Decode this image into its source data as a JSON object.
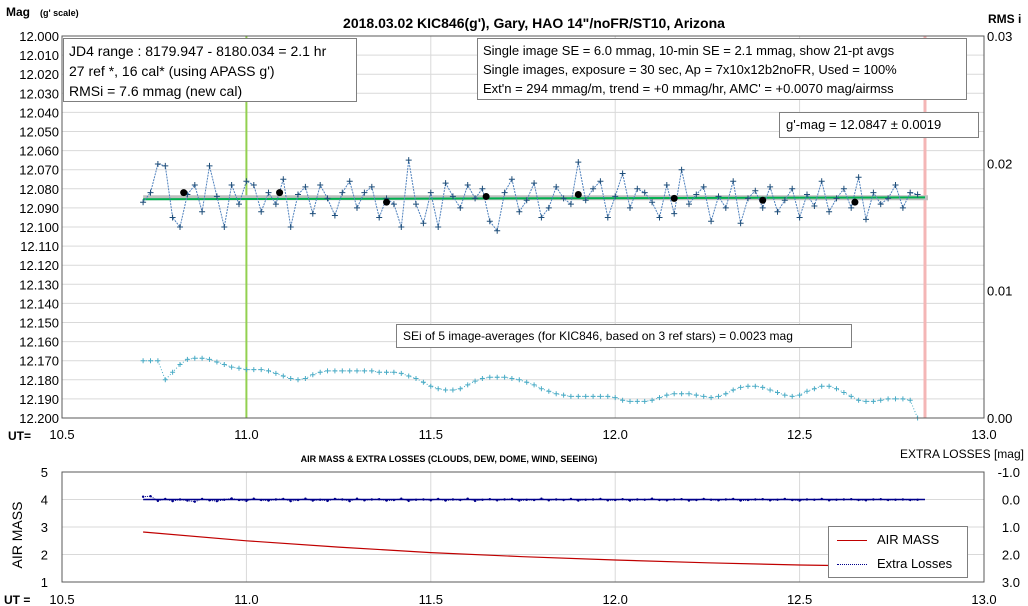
{
  "chart_data": [
    {
      "type": "scatter",
      "title": "2018.03.02  KIC846(g'),  Gary, HAO  14\"/noFR/ST10,  Arizona",
      "ylabel": "Mag",
      "ylabel_unit": "(g' scale)",
      "xlabel": "UT=",
      "y2label": "RMS i",
      "xlim": [
        10.5,
        13.0
      ],
      "ylim": [
        12.0,
        12.2
      ],
      "y_inverted": true,
      "y2lim": [
        0.0,
        0.03
      ],
      "x_ticks": [
        "10.5",
        "11.0",
        "11.5",
        "12.0",
        "12.5",
        "13.0"
      ],
      "y_ticks": [
        "12.000",
        "12.010",
        "12.020",
        "12.030",
        "12.040",
        "12.050",
        "12.060",
        "12.070",
        "12.080",
        "12.090",
        "12.100",
        "12.110",
        "12.120",
        "12.130",
        "12.140",
        "12.150",
        "12.160",
        "12.170",
        "12.180",
        "12.190",
        "12.200"
      ],
      "y2_ticks": [
        "0.00",
        "0.01",
        "0.02",
        "0.03"
      ],
      "grid": true,
      "mean_mag": 12.0847,
      "vertical_markers": [
        {
          "x": 11.0,
          "color": "#92d050"
        },
        {
          "x": 12.84,
          "color": "#f4b6b6"
        }
      ],
      "series": [
        {
          "style": "blue-cross-line",
          "color": "#4f81bd",
          "x": [
            10.72,
            10.74,
            10.76,
            10.78,
            10.8,
            10.82,
            10.84,
            10.86,
            10.88,
            10.9,
            10.92,
            10.94,
            10.96,
            10.98,
            11.0,
            11.02,
            11.04,
            11.06,
            11.08,
            11.1,
            11.12,
            11.14,
            11.16,
            11.18,
            11.2,
            11.22,
            11.24,
            11.26,
            11.28,
            11.3,
            11.32,
            11.34,
            11.36,
            11.38,
            11.4,
            11.42,
            11.44,
            11.46,
            11.48,
            11.5,
            11.52,
            11.54,
            11.56,
            11.58,
            11.6,
            11.62,
            11.64,
            11.66,
            11.68,
            11.7,
            11.72,
            11.74,
            11.76,
            11.78,
            11.8,
            11.82,
            11.84,
            11.86,
            11.88,
            11.9,
            11.92,
            11.94,
            11.96,
            11.98,
            12.0,
            12.02,
            12.04,
            12.06,
            12.08,
            12.1,
            12.12,
            12.14,
            12.16,
            12.18,
            12.2,
            12.22,
            12.24,
            12.26,
            12.28,
            12.3,
            12.32,
            12.34,
            12.36,
            12.38,
            12.4,
            12.42,
            12.44,
            12.46,
            12.48,
            12.5,
            12.52,
            12.54,
            12.56,
            12.58,
            12.6,
            12.62,
            12.64,
            12.66,
            12.68,
            12.7,
            12.72,
            12.74,
            12.76,
            12.78,
            12.8,
            12.82
          ],
          "values": [
            12.087,
            12.082,
            12.067,
            12.068,
            12.095,
            12.1,
            12.083,
            12.078,
            12.092,
            12.068,
            12.084,
            12.1,
            12.078,
            12.088,
            12.076,
            12.078,
            12.092,
            12.082,
            12.088,
            12.075,
            12.1,
            12.083,
            12.079,
            12.093,
            12.078,
            12.085,
            12.094,
            12.082,
            12.076,
            12.09,
            12.082,
            12.079,
            12.095,
            12.085,
            12.088,
            12.1,
            12.065,
            12.088,
            12.098,
            12.082,
            12.1,
            12.077,
            12.084,
            12.09,
            12.078,
            12.085,
            12.08,
            12.097,
            12.102,
            12.082,
            12.075,
            12.092,
            12.086,
            12.077,
            12.095,
            12.09,
            12.079,
            12.085,
            12.088,
            12.066,
            12.086,
            12.08,
            12.076,
            12.095,
            12.084,
            12.072,
            12.09,
            12.08,
            12.082,
            12.087,
            12.095,
            12.078,
            12.093,
            12.07,
            12.088,
            12.083,
            12.079,
            12.097,
            12.084,
            12.09,
            12.076,
            12.098,
            12.085,
            12.081,
            12.09,
            12.079,
            12.092,
            12.086,
            12.08,
            12.095,
            12.083,
            12.089,
            12.076,
            12.092,
            12.085,
            12.08,
            12.09,
            12.074,
            12.096,
            12.082,
            12.088,
            12.085,
            12.078,
            12.09,
            12.082,
            12.083
          ]
        },
        {
          "style": "black-dot",
          "color": "#000000",
          "x": [
            10.83,
            11.09,
            11.38,
            11.65,
            11.9,
            12.16,
            12.4,
            12.65
          ],
          "values": [
            12.082,
            12.082,
            12.087,
            12.084,
            12.083,
            12.085,
            12.086,
            12.087
          ]
        },
        {
          "style": "green-line",
          "color": "#00b050",
          "x": [
            10.72,
            12.84
          ],
          "values": [
            12.0855,
            12.0845
          ]
        },
        {
          "style": "teal-cross-line",
          "axis": "right",
          "color": "#4bacc6",
          "x": [
            10.72,
            10.74,
            10.76,
            10.78,
            10.8,
            10.82,
            10.84,
            10.86,
            10.88,
            10.9,
            10.92,
            10.94,
            10.96,
            10.98,
            11.0,
            11.02,
            11.04,
            11.06,
            11.08,
            11.1,
            11.12,
            11.14,
            11.16,
            11.18,
            11.2,
            11.22,
            11.24,
            11.26,
            11.28,
            11.3,
            11.32,
            11.34,
            11.36,
            11.38,
            11.4,
            11.42,
            11.44,
            11.46,
            11.48,
            11.5,
            11.52,
            11.54,
            11.56,
            11.58,
            11.6,
            11.62,
            11.64,
            11.66,
            11.68,
            11.7,
            11.72,
            11.74,
            11.76,
            11.78,
            11.8,
            11.82,
            11.84,
            11.86,
            11.88,
            11.9,
            11.92,
            11.94,
            11.96,
            11.98,
            12.0,
            12.02,
            12.04,
            12.06,
            12.08,
            12.1,
            12.12,
            12.14,
            12.16,
            12.18,
            12.2,
            12.22,
            12.24,
            12.26,
            12.28,
            12.3,
            12.32,
            12.34,
            12.36,
            12.38,
            12.4,
            12.42,
            12.44,
            12.46,
            12.48,
            12.5,
            12.52,
            12.54,
            12.56,
            12.58,
            12.6,
            12.62,
            12.64,
            12.66,
            12.68,
            12.7,
            12.72,
            12.74,
            12.76,
            12.78,
            12.8,
            12.82
          ],
          "values": [
            0.0045,
            0.0045,
            0.0045,
            0.003,
            0.0036,
            0.0042,
            0.0046,
            0.0047,
            0.0047,
            0.0046,
            0.0044,
            0.0042,
            0.004,
            0.0039,
            0.0038,
            0.0038,
            0.0038,
            0.0037,
            0.0035,
            0.0033,
            0.0031,
            0.003,
            0.0031,
            0.0034,
            0.0036,
            0.0037,
            0.0037,
            0.0037,
            0.0037,
            0.0037,
            0.0037,
            0.0037,
            0.0036,
            0.0036,
            0.0036,
            0.0035,
            0.0033,
            0.0031,
            0.0028,
            0.0025,
            0.0023,
            0.0022,
            0.0022,
            0.0023,
            0.0026,
            0.0029,
            0.0031,
            0.0032,
            0.0032,
            0.0032,
            0.0031,
            0.003,
            0.0028,
            0.0026,
            0.0023,
            0.0021,
            0.0019,
            0.0018,
            0.0017,
            0.0017,
            0.0017,
            0.0017,
            0.0017,
            0.0017,
            0.0016,
            0.0014,
            0.0013,
            0.0013,
            0.0013,
            0.0014,
            0.0016,
            0.0018,
            0.0019,
            0.0019,
            0.0019,
            0.0018,
            0.0017,
            0.0016,
            0.0017,
            0.0019,
            0.0022,
            0.0024,
            0.0025,
            0.0025,
            0.0024,
            0.0022,
            0.002,
            0.0018,
            0.0017,
            0.0018,
            0.0021,
            0.0023,
            0.0025,
            0.0025,
            0.0023,
            0.002,
            0.0017,
            0.0014,
            0.0013,
            0.0013,
            0.0014,
            0.0015,
            0.0015,
            0.0015,
            0.0014,
            0.0
          ]
        }
      ],
      "annotations": {
        "jd_box": [
          "JD4 range : 8179.947 - 8180.034 = 2.1  hr",
          "27 ref *, 16 cal* (using APASS g')",
          "RMSi = 7.6 mmag (new cal)"
        ],
        "info_box": [
          "Single image SE = 6.0 mmag, 10-min SE = 2.1 mmag, show  21-pt avgs",
          "Single images, exposure = 30 sec, Ap = 7x10x12b2noFR,  Used = 100%",
          "Ext'n = 294 mmag/m, trend =  +0 mmag/hr, AMC' = +0.0070 mag/airmss"
        ],
        "gmag_box": "g'-mag = 12.0847 ± 0.0019",
        "sei_box": "SEi of 5 image-averages (for KIC846, based on 3 ref stars) = 0.0023  mag"
      }
    },
    {
      "type": "line",
      "title": "AIR MASS & EXTRA LOSSES (CLOUDS, DEW, DOME, WIND, SEEING)",
      "ylabel": "AIR MASS",
      "y2label": "EXTRA LOSSES [mag]",
      "xlabel": "UT =",
      "xlim": [
        10.5,
        13.0
      ],
      "ylim": [
        1,
        5
      ],
      "y2lim": [
        3.0,
        -1.0
      ],
      "x_ticks": [
        "10.5",
        "11.0",
        "11.5",
        "12.0",
        "12.5",
        "13.0"
      ],
      "y_ticks": [
        "1",
        "2",
        "3",
        "4",
        "5"
      ],
      "y2_ticks": [
        "-1.0",
        "0.0",
        "1.0",
        "2.0",
        "3.0"
      ],
      "grid": true,
      "legend": "bottom-right",
      "series": [
        {
          "name": "AIR MASS",
          "color": "#c00000",
          "x": [
            10.72,
            11.0,
            11.25,
            11.5,
            11.75,
            12.0,
            12.25,
            12.5,
            12.84
          ],
          "values": [
            2.82,
            2.5,
            2.27,
            2.07,
            1.92,
            1.8,
            1.7,
            1.62,
            1.55
          ]
        },
        {
          "name": "Extra Losses",
          "axis": "right",
          "color": "#00008b",
          "style": "dotted",
          "x": [
            10.72,
            10.74,
            10.76,
            10.78,
            10.8,
            10.82,
            10.84,
            10.86,
            10.88,
            10.9,
            10.92,
            10.94,
            10.96,
            10.98,
            11.0,
            11.02,
            11.04,
            11.06,
            11.08,
            11.1,
            11.12,
            11.14,
            11.16,
            11.18,
            11.2,
            11.22,
            11.24,
            11.26,
            11.28,
            11.3,
            11.32,
            11.34,
            11.36,
            11.38,
            11.4,
            11.42,
            11.44,
            11.46,
            11.48,
            11.5,
            11.52,
            11.54,
            11.56,
            11.58,
            11.6,
            11.62,
            11.64,
            11.66,
            11.68,
            11.7,
            11.72,
            11.74,
            11.76,
            11.78,
            11.8,
            11.82,
            11.84,
            11.86,
            11.88,
            11.9,
            11.92,
            11.94,
            11.96,
            11.98,
            12.0,
            12.02,
            12.04,
            12.06,
            12.08,
            12.1,
            12.12,
            12.14,
            12.16,
            12.18,
            12.2,
            12.22,
            12.24,
            12.26,
            12.28,
            12.3,
            12.32,
            12.34,
            12.36,
            12.38,
            12.4,
            12.42,
            12.44,
            12.46,
            12.48,
            12.5,
            12.52,
            12.54,
            12.56,
            12.58,
            12.6,
            12.62,
            12.64,
            12.66,
            12.68,
            12.7,
            12.72,
            12.74,
            12.76,
            12.78,
            12.8,
            12.82
          ],
          "values": [
            -0.1,
            -0.12,
            0.05,
            -0.02,
            0.06,
            0.0,
            0.04,
            0.08,
            -0.02,
            0.03,
            0.06,
            0.01,
            -0.04,
            0.02,
            0.05,
            -0.03,
            0.02,
            0.04,
            0.0,
            -0.02,
            0.06,
            0.02,
            -0.03,
            0.04,
            0.01,
            0.05,
            -0.02,
            0.0,
            0.06,
            -0.03,
            0.03,
            0.0,
            -0.01,
            0.04,
            0.02,
            -0.03,
            0.05,
            0.01,
            0.0,
            0.03,
            -0.02,
            0.04,
            0.0,
            0.02,
            -0.03,
            0.05,
            0.01,
            -0.01,
            0.03,
            0.0,
            -0.02,
            0.04,
            0.01,
            0.02,
            -0.03,
            0.03,
            0.0,
            0.02,
            -0.02,
            0.04,
            0.01,
            0.0,
            -0.02,
            0.03,
            0.02,
            -0.01,
            0.04,
            0.0,
            0.01,
            -0.03,
            0.02,
            0.03,
            0.0,
            -0.01,
            0.04,
            0.02,
            -0.02,
            0.01,
            0.03,
            0.0,
            -0.02,
            0.04,
            0.02,
            0.0,
            -0.01,
            0.03,
            0.01,
            -0.02,
            0.02,
            0.04,
            0.0,
            0.01,
            -0.02,
            0.03,
            0.01,
            0.0,
            -0.01,
            0.02,
            0.03,
            0.0,
            -0.01,
            0.02,
            0.01,
            0.0,
            0.02,
            0.01
          ]
        }
      ]
    }
  ]
}
